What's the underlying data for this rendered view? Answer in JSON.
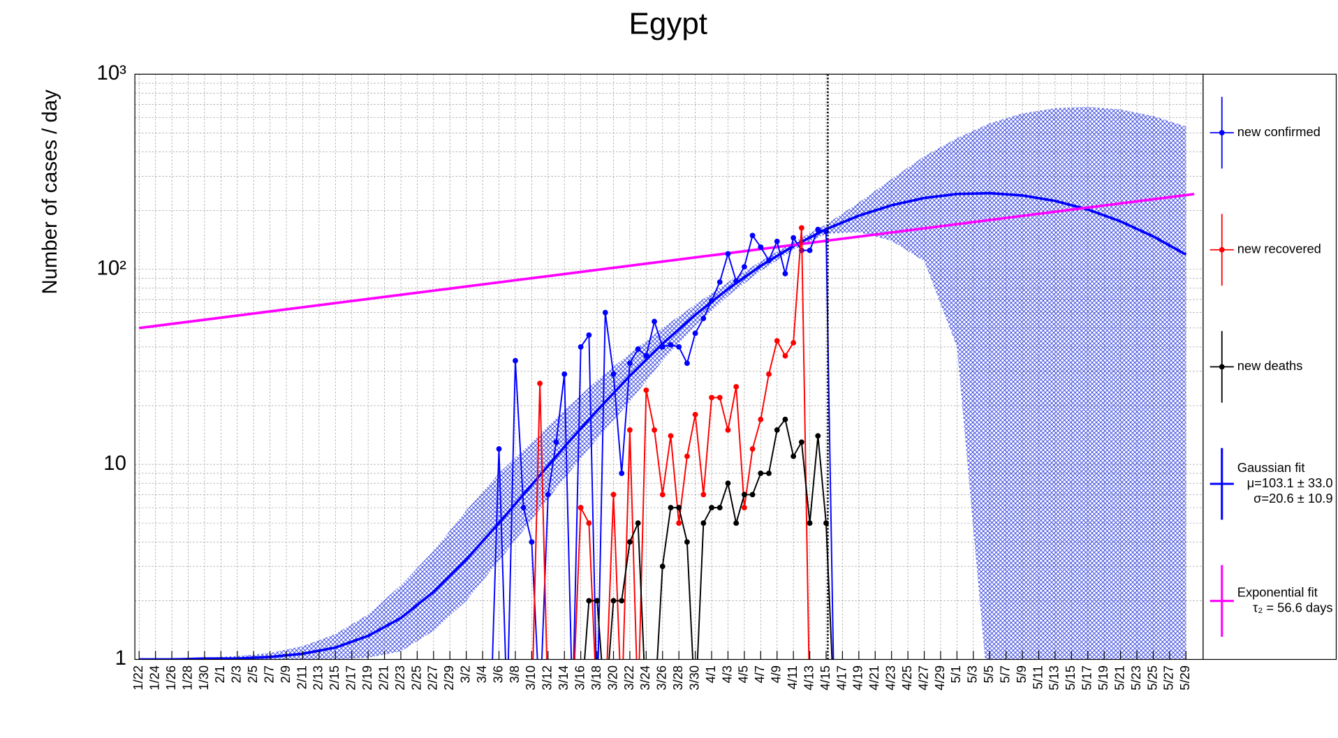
{
  "chart_data": {
    "type": "line",
    "title": "Egypt",
    "y_label": "Number of cases / day",
    "log_y": true,
    "grid": true,
    "ylim": [
      1,
      1000
    ],
    "yticks": [
      1,
      10,
      {
        "value": 100,
        "label": "10²"
      },
      {
        "value": 1000,
        "label": "10³"
      }
    ],
    "yminorticks": [
      2,
      3,
      4,
      5,
      6,
      7,
      8,
      9,
      20,
      30,
      40,
      50,
      60,
      70,
      80,
      90,
      200,
      300,
      400,
      500,
      600,
      700,
      800,
      900
    ],
    "categories": [
      "1/22",
      "1/24",
      "1/26",
      "1/28",
      "1/30",
      "2/1",
      "2/3",
      "2/5",
      "2/7",
      "2/9",
      "2/11",
      "2/13",
      "2/15",
      "2/17",
      "2/19",
      "2/21",
      "2/23",
      "2/25",
      "2/27",
      "2/29",
      "3/2",
      "3/4",
      "3/6",
      "3/8",
      "3/10",
      "3/12",
      "3/14",
      "3/16",
      "3/18",
      "3/20",
      "3/22",
      "3/24",
      "3/26",
      "3/28",
      "3/30",
      "4/1",
      "4/3",
      "4/5",
      "4/7",
      "4/9",
      "4/11",
      "4/13",
      "4/15",
      "4/17",
      "4/19",
      "4/21",
      "4/23",
      "4/25",
      "4/27",
      "4/29",
      "5/1",
      "5/3",
      "5/5",
      "5/7",
      "5/9",
      "5/11",
      "5/13",
      "5/15",
      "5/17",
      "5/19",
      "5/21",
      "5/23",
      "5/25",
      "5/27",
      "5/29"
    ],
    "vline": "4/15",
    "legend": "right",
    "series": [
      {
        "name": "new confirmed",
        "color": "#0000ff",
        "marker": true,
        "x": [
          "3/5",
          "3/6",
          "3/7",
          "3/8",
          "3/9",
          "3/10",
          "3/11",
          "3/12",
          "3/13",
          "3/14",
          "3/15",
          "3/16",
          "3/17",
          "3/18",
          "3/19",
          "3/20",
          "3/21",
          "3/22",
          "3/23",
          "3/24",
          "3/25",
          "3/26",
          "3/27",
          "3/28",
          "3/29",
          "3/30",
          "3/31",
          "4/1",
          "4/2",
          "4/3",
          "4/4",
          "4/5",
          "4/6",
          "4/7",
          "4/8",
          "4/9",
          "4/10",
          "4/11",
          "4/12",
          "4/13",
          "4/14",
          "4/15",
          "4/16"
        ],
        "values": [
          0,
          12,
          0,
          34,
          6,
          4,
          0,
          7,
          13,
          29,
          0,
          40,
          46,
          0,
          60,
          29,
          9,
          33,
          39,
          36,
          54,
          40,
          41,
          40,
          33,
          47,
          56,
          69,
          86,
          120,
          87,
          103,
          149,
          130,
          111,
          139,
          95,
          145,
          125,
          125,
          160,
          156,
          0
        ]
      },
      {
        "name": "new recovered",
        "color": "#ff0000",
        "marker": true,
        "x": [
          "3/10",
          "3/11",
          "3/12",
          "3/13",
          "3/14",
          "3/15",
          "3/16",
          "3/17",
          "3/18",
          "3/19",
          "3/20",
          "3/21",
          "3/22",
          "3/23",
          "3/24",
          "3/25",
          "3/26",
          "3/27",
          "3/28",
          "3/29",
          "3/30",
          "3/31",
          "4/1",
          "4/2",
          "4/3",
          "4/4",
          "4/5",
          "4/6",
          "4/7",
          "4/8",
          "4/9",
          "4/10",
          "4/11",
          "4/12",
          "4/13"
        ],
        "values": [
          0,
          26,
          0,
          0,
          0,
          0,
          6,
          5,
          0,
          0,
          7,
          0,
          15,
          0,
          24,
          15,
          7,
          14,
          5,
          11,
          18,
          7,
          22,
          22,
          15,
          25,
          6,
          12,
          17,
          29,
          43,
          36,
          42,
          163,
          0
        ]
      },
      {
        "name": "new deaths",
        "color": "#000000",
        "marker": true,
        "x": [
          "3/16",
          "3/17",
          "3/18",
          "3/19",
          "3/20",
          "3/21",
          "3/22",
          "3/23",
          "3/24",
          "3/25",
          "3/26",
          "3/27",
          "3/28",
          "3/29",
          "3/30",
          "3/31",
          "4/1",
          "4/2",
          "4/3",
          "4/4",
          "4/5",
          "4/6",
          "4/7",
          "4/8",
          "4/9",
          "4/10",
          "4/11",
          "4/12",
          "4/13",
          "4/14",
          "4/15",
          "4/16"
        ],
        "values": [
          0,
          2,
          2,
          0,
          2,
          2,
          4,
          5,
          0,
          0,
          3,
          6,
          6,
          4,
          0,
          5,
          6,
          6,
          8,
          5,
          7,
          7,
          9,
          9,
          15,
          17,
          11,
          13,
          5,
          14,
          5,
          0
        ]
      },
      {
        "name": "Gaussian fit",
        "color": "#0000ff",
        "marker": false,
        "params": [
          "μ=103.1 ± 33.0",
          "σ=20.6 ± 10.9"
        ],
        "x": [
          "1/22",
          "1/26",
          "1/30",
          "2/3",
          "2/7",
          "2/11",
          "2/15",
          "2/19",
          "2/23",
          "2/27",
          "3/2",
          "3/6",
          "3/10",
          "3/14",
          "3/18",
          "3/22",
          "3/26",
          "3/30",
          "4/3",
          "4/7",
          "4/11",
          "4/15",
          "4/19",
          "4/23",
          "4/27",
          "5/1",
          "5/5",
          "5/9",
          "5/13",
          "5/17",
          "5/21",
          "5/25",
          "5/29"
        ],
        "values": [
          1,
          1,
          1.01,
          1.01,
          1.03,
          1.07,
          1.15,
          1.32,
          1.63,
          2.22,
          3.25,
          5,
          7.85,
          12.3,
          18.9,
          28.4,
          41.5,
          58.4,
          79.3,
          104.1,
          131.6,
          160.5,
          188.3,
          213,
          231.9,
          243.2,
          245.8,
          239.2,
          224.2,
          202.4,
          176,
          147.4,
          119
        ],
        "band_high": [
          1,
          1,
          1.02,
          1.04,
          1.08,
          1.17,
          1.35,
          1.7,
          2.4,
          3.6,
          5.8,
          9,
          13,
          19,
          27,
          37,
          50,
          66,
          86,
          110,
          138,
          170,
          220,
          290,
          380,
          470,
          560,
          630,
          670,
          680,
          660,
          610,
          540
        ],
        "band_low": [
          1,
          1,
          1,
          1,
          1,
          1,
          1,
          1.02,
          1.1,
          1.4,
          2,
          3.2,
          5.2,
          8.5,
          13.5,
          21,
          34,
          51,
          73,
          98,
          126,
          152,
          155,
          140,
          110,
          40,
          0,
          0,
          0,
          0,
          0,
          0,
          0
        ]
      },
      {
        "name": "Exponential fit",
        "color": "#ff00ff",
        "marker": false,
        "params": [
          "τ₂ = 56.6 days"
        ],
        "x": [
          "1/22",
          "5/30"
        ],
        "values": [
          50,
          243
        ]
      }
    ]
  }
}
